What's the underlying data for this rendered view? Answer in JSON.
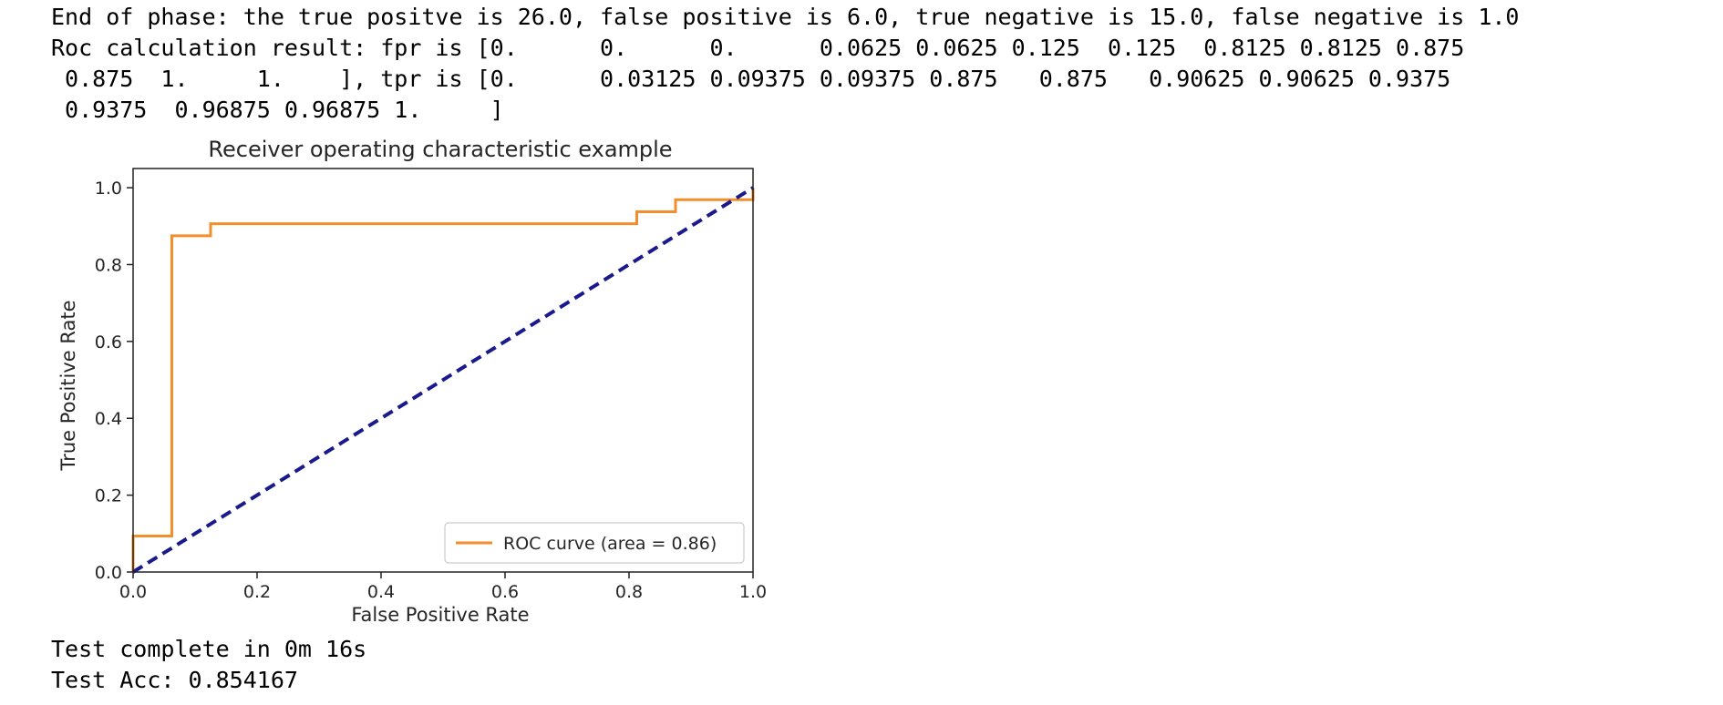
{
  "output": {
    "lines_top": [
      "End of phase: the true positve is 26.0, false positive is 6.0, true negative is 15.0, false negative is 1.0",
      "Roc calculation result: fpr is [0.      0.      0.      0.0625 0.0625 0.125  0.125  0.8125 0.8125 0.875",
      " 0.875  1.     1.    ], tpr is [0.      0.03125 0.09375 0.09375 0.875   0.875   0.90625 0.90625 0.9375",
      " 0.9375  0.96875 0.96875 1.     ]"
    ],
    "lines_bottom": [
      "Test complete in 0m 16s",
      "Test Acc: 0.854167"
    ]
  },
  "chart_data": {
    "type": "line",
    "title": "Receiver operating characteristic example",
    "xlabel": "False Positive Rate",
    "ylabel": "True Positive Rate",
    "xlim": [
      0.0,
      1.0
    ],
    "ylim": [
      0.0,
      1.05
    ],
    "xticks": [
      "0.0",
      "0.2",
      "0.4",
      "0.6",
      "0.8",
      "1.0"
    ],
    "yticks": [
      "0.0",
      "0.2",
      "0.4",
      "0.6",
      "0.8",
      "1.0"
    ],
    "grid": false,
    "legend_position": "lower right",
    "series": [
      {
        "name": "ROC curve (area = 0.86)",
        "color": "#f28e2b",
        "style": "solid",
        "x": [
          0.0,
          0.0,
          0.0,
          0.0625,
          0.0625,
          0.125,
          0.125,
          0.8125,
          0.8125,
          0.875,
          0.875,
          1.0,
          1.0
        ],
        "y": [
          0.0,
          0.03125,
          0.09375,
          0.09375,
          0.875,
          0.875,
          0.90625,
          0.90625,
          0.9375,
          0.9375,
          0.96875,
          0.96875,
          1.0
        ]
      },
      {
        "color": "#1a1a8c",
        "style": "dashed",
        "x": [
          0.0,
          1.0
        ],
        "y": [
          0.0,
          1.0
        ]
      }
    ]
  }
}
